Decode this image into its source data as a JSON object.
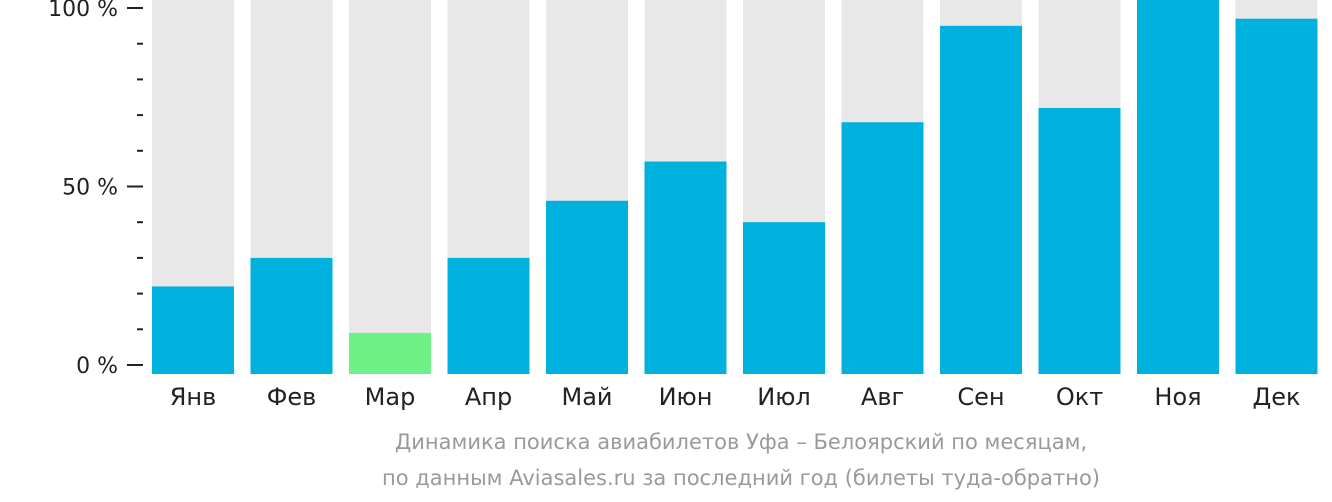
{
  "chart_data": {
    "type": "bar",
    "categories": [
      "Янв",
      "Фев",
      "Мар",
      "Апр",
      "Май",
      "Июн",
      "Июл",
      "Авг",
      "Сен",
      "Окт",
      "Ноя",
      "Дек"
    ],
    "values": [
      22,
      30,
      9,
      30,
      46,
      57,
      40,
      68,
      95,
      72,
      105,
      97
    ],
    "ylim": [
      0,
      100
    ],
    "y_ticks": [
      {
        "value": 0,
        "label": "0 %"
      },
      {
        "value": 50,
        "label": "50 %"
      },
      {
        "value": 100,
        "label": "100 %"
      }
    ],
    "minor_tick_step": 10,
    "colors": {
      "bar": "#00b0dd",
      "highlight_bar": "#6ef287",
      "track": "#e8e8e8",
      "axis": "#222222"
    },
    "highlight_category": "Мар",
    "legend": "none",
    "grid": false
  },
  "caption": {
    "line1": "Динамика поиска авиабилетов Уфа – Белоярский по месяцам,",
    "line2": "по данным Aviasales.ru за последний год (билеты туда-обратно)"
  }
}
